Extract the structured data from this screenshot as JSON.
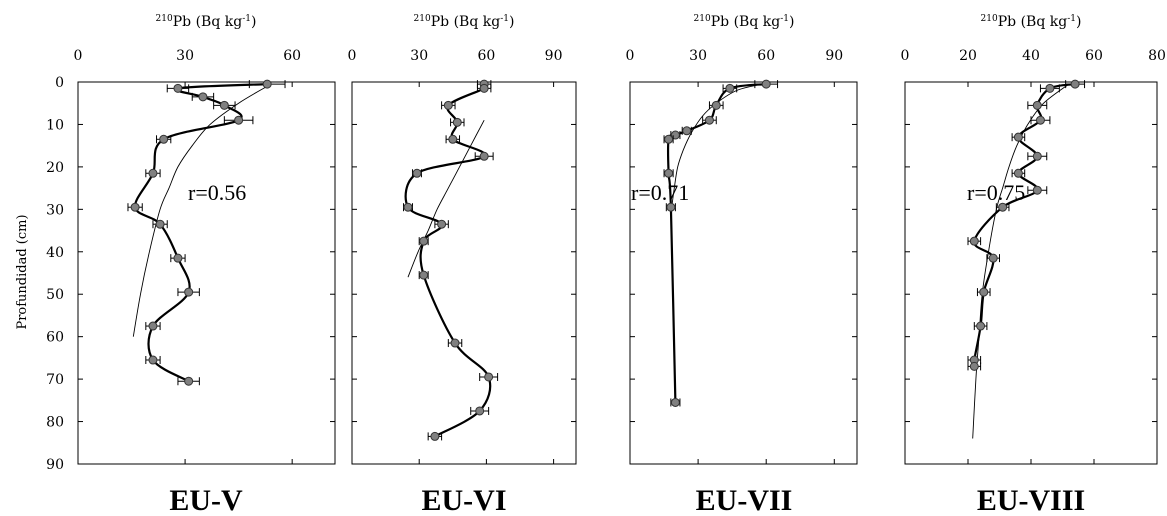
{
  "y_axis": {
    "label": "Profundidad (cm)",
    "ticks": [
      0,
      10,
      20,
      30,
      40,
      50,
      60,
      70,
      80,
      90
    ],
    "ylim": [
      0,
      90
    ],
    "inverted": true
  },
  "chart_data": [
    {
      "type": "line",
      "title": "EU-V",
      "xlabel_super": "210",
      "xlabel_main": "Pb (Bq kg",
      "xlabel_sup2": "-1",
      "xlabel_close": ")",
      "xlim": [
        0,
        72
      ],
      "xticks": [
        0,
        30,
        60
      ],
      "correlation": "r=0.56",
      "colors": {
        "markers": "#808080",
        "line": "#000000"
      },
      "series": [
        {
          "kind": "measured",
          "depth": [
            0.5,
            1.5,
            3.5,
            5.5,
            9,
            13.5,
            21.5,
            29.5,
            33.5,
            41.5,
            49.5,
            57.5,
            65.5,
            70.5
          ],
          "pb210": [
            53,
            28,
            35,
            41,
            45,
            24,
            21,
            16,
            23,
            28,
            31,
            21,
            21,
            31
          ],
          "error": [
            5,
            3,
            3,
            3,
            4,
            2,
            2,
            2,
            2,
            2,
            3,
            2,
            2,
            3
          ]
        },
        {
          "kind": "fit",
          "depth": [
            1,
            5,
            10,
            15,
            20,
            25,
            30,
            40,
            50,
            60
          ],
          "pb210": [
            53,
            45,
            37,
            32,
            28,
            25.5,
            23,
            20,
            17.5,
            15.5
          ]
        }
      ]
    },
    {
      "type": "line",
      "title": "EU-VI",
      "xlabel_super": "210",
      "xlabel_main": "Pb (Bq kg",
      "xlabel_sup2": "-1",
      "xlabel_close": ")",
      "xlim": [
        0,
        100
      ],
      "xticks": [
        0,
        30,
        60,
        90
      ],
      "correlation": "",
      "colors": {
        "markers": "#808080",
        "line": "#000000"
      },
      "series": [
        {
          "kind": "measured",
          "depth": [
            0.5,
            1.5,
            5.5,
            9.5,
            13.5,
            17.5,
            21.5,
            29.5,
            33.5,
            37.5,
            45.5,
            61.5,
            69.5,
            77.5,
            83.5
          ],
          "pb210": [
            59,
            59,
            43,
            47,
            45,
            59,
            29,
            25,
            40,
            32,
            32,
            46,
            61,
            57,
            37
          ],
          "error": [
            3,
            3,
            3,
            3,
            3,
            4,
            2,
            2,
            3,
            2,
            2,
            3,
            4,
            4,
            3
          ]
        },
        {
          "kind": "fit",
          "depth": [
            9,
            15,
            20,
            25,
            30,
            35,
            40,
            46
          ],
          "pb210": [
            59,
            53,
            48,
            43,
            38,
            34,
            29.5,
            25
          ]
        }
      ]
    },
    {
      "type": "line",
      "title": "EU-VII",
      "xlabel_super": "210",
      "xlabel_main": "Pb (Bq kg",
      "xlabel_sup2": "-1",
      "xlabel_close": ")",
      "xlim": [
        0,
        100
      ],
      "xticks": [
        0,
        30,
        60,
        90
      ],
      "correlation": "r=0.71",
      "colors": {
        "markers": "#808080",
        "line": "#000000"
      },
      "series": [
        {
          "kind": "measured",
          "depth": [
            0.5,
            1.5,
            5.5,
            9,
            11.5,
            12.5,
            13.5,
            21.5,
            29.5,
            75.5
          ],
          "pb210": [
            60,
            44,
            38,
            35,
            25,
            20,
            17,
            17,
            18,
            20
          ],
          "error": [
            5,
            3,
            3,
            3,
            2,
            2,
            2,
            2,
            2,
            2
          ]
        },
        {
          "kind": "fit",
          "depth": [
            0.5,
            2,
            5,
            8,
            12,
            16,
            20,
            25,
            29
          ],
          "pb210": [
            58,
            47,
            38,
            32,
            27,
            23.5,
            21,
            19.5,
            18.5
          ]
        }
      ]
    },
    {
      "type": "line",
      "title": "EU-VIII",
      "xlabel_super": "210",
      "xlabel_main": "Pb (Bq kg",
      "xlabel_sup2": "-1",
      "xlabel_close": ")",
      "xlim": [
        0,
        80
      ],
      "xticks": [
        0,
        20,
        40,
        60,
        80
      ],
      "correlation": "r=0.75",
      "colors": {
        "markers": "#808080",
        "line": "#000000"
      },
      "series": [
        {
          "kind": "measured",
          "depth": [
            0.5,
            1.5,
            5.5,
            9,
            13,
            17.5,
            21.5,
            25.5,
            29.5,
            37.5,
            41.5,
            49.5,
            57.5,
            65.5,
            67
          ],
          "pb210": [
            54,
            46,
            42,
            43,
            36,
            42,
            36,
            42,
            31,
            22,
            28,
            25,
            24,
            22,
            22
          ],
          "error": [
            3,
            3,
            3,
            3,
            2,
            3,
            2,
            3,
            2,
            2,
            2,
            2,
            2,
            2,
            2
          ]
        },
        {
          "kind": "fit",
          "depth": [
            0.5,
            5,
            10,
            15,
            20,
            25,
            30,
            40,
            50,
            60,
            70,
            84
          ],
          "pb210": [
            52,
            44,
            39,
            35.5,
            33,
            31,
            29,
            26.5,
            24.5,
            23.5,
            22.5,
            21.5
          ]
        }
      ]
    }
  ]
}
